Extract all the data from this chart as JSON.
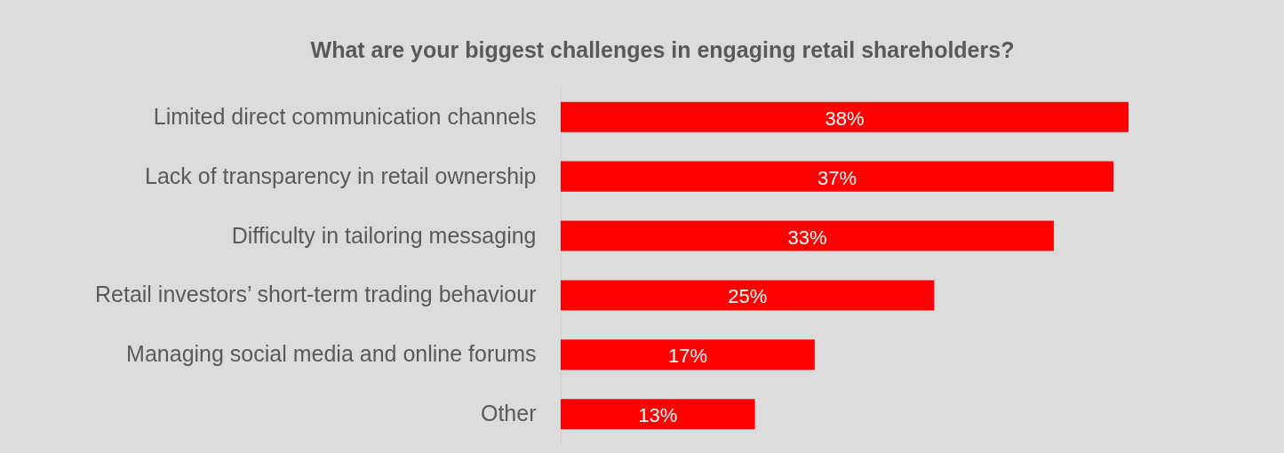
{
  "chart_data": {
    "type": "bar",
    "orientation": "horizontal",
    "title": "What are your biggest challenges in engaging retail shareholders?",
    "categories": [
      "Limited direct communication channels",
      "Lack of transparency in retail ownership",
      "Difficulty in tailoring messaging",
      "Retail investors’ short-term trading behaviour",
      "Managing social media and online forums",
      "Other"
    ],
    "values": [
      38,
      37,
      33,
      25,
      17,
      13
    ],
    "value_labels": [
      "38%",
      "37%",
      "33%",
      "25%",
      "17%",
      "13%"
    ],
    "color": "#ff0000"
  }
}
